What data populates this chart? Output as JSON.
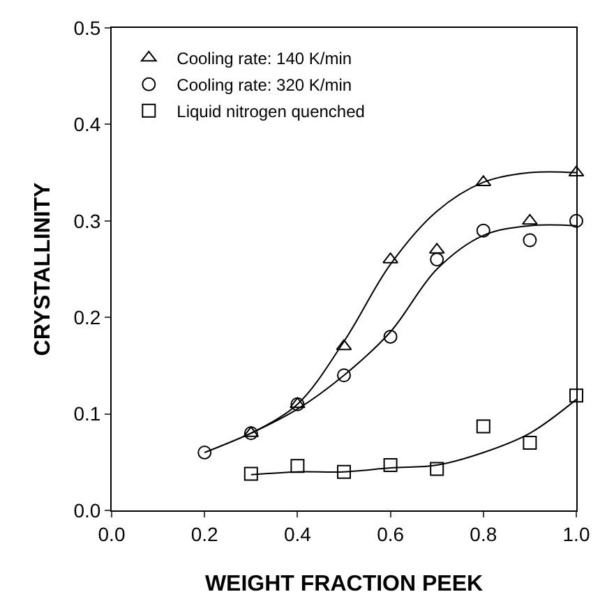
{
  "chart_data": {
    "type": "scatter",
    "xlabel": "WEIGHT FRACTION PEEK",
    "ylabel": "CRYSTALLINITY",
    "xlim": [
      0.0,
      1.0
    ],
    "xticks": [
      {
        "value": 0.0,
        "label": "0.0"
      },
      0.2,
      0.4,
      0.6,
      0.8,
      {
        "value": 1.0,
        "label": "1.0"
      }
    ],
    "ylim": [
      0.0,
      0.5
    ],
    "yticks": [
      {
        "value": 0.0,
        "label": "0.0"
      },
      0.1,
      0.2,
      0.3,
      0.4,
      0.5
    ],
    "legend": "top left",
    "series": [
      {
        "name": "Cooling rate: 140 K/min",
        "color": "#000000",
        "marker": "triangle",
        "x": [
          0.3,
          0.4,
          0.5,
          0.6,
          0.7,
          0.8,
          0.9,
          1.0
        ],
        "values": [
          0.08,
          0.11,
          0.17,
          0.26,
          0.27,
          0.34,
          0.3,
          0.35
        ]
      },
      {
        "name": "Cooling rate: 320 K/min",
        "color": "#000000",
        "marker": "circle",
        "x": [
          0.2,
          0.3,
          0.4,
          0.5,
          0.6,
          0.7,
          0.8,
          0.9,
          1.0
        ],
        "values": [
          0.06,
          0.08,
          0.11,
          0.14,
          0.18,
          0.26,
          0.29,
          0.28,
          0.3
        ]
      },
      {
        "name": "Liquid nitrogen quenched",
        "color": "#000000",
        "marker": "square",
        "x": [
          0.3,
          0.4,
          0.5,
          0.6,
          0.7,
          0.8,
          0.9,
          1.0
        ],
        "values": [
          0.038,
          0.046,
          0.04,
          0.047,
          0.043,
          0.087,
          0.07,
          0.119
        ]
      },
      {
        "type": "line",
        "color": "#000000",
        "marker": "none",
        "x": [
          0.3,
          0.4,
          0.5,
          0.6,
          0.7,
          0.8,
          0.9,
          1.0
        ],
        "values": [
          0.08,
          0.11,
          0.175,
          0.255,
          0.31,
          0.34,
          0.35,
          0.35
        ]
      },
      {
        "type": "line",
        "color": "#000000",
        "marker": "none",
        "x": [
          0.2,
          0.3,
          0.4,
          0.5,
          0.6,
          0.7,
          0.8,
          0.9,
          1.0
        ],
        "values": [
          0.06,
          0.08,
          0.105,
          0.14,
          0.185,
          0.25,
          0.285,
          0.295,
          0.295
        ]
      },
      {
        "type": "line",
        "color": "#000000",
        "marker": "none",
        "x": [
          0.3,
          0.4,
          0.5,
          0.6,
          0.7,
          0.8,
          0.9,
          1.0
        ],
        "values": [
          0.037,
          0.04,
          0.04,
          0.044,
          0.047,
          0.06,
          0.08,
          0.115
        ]
      }
    ]
  }
}
